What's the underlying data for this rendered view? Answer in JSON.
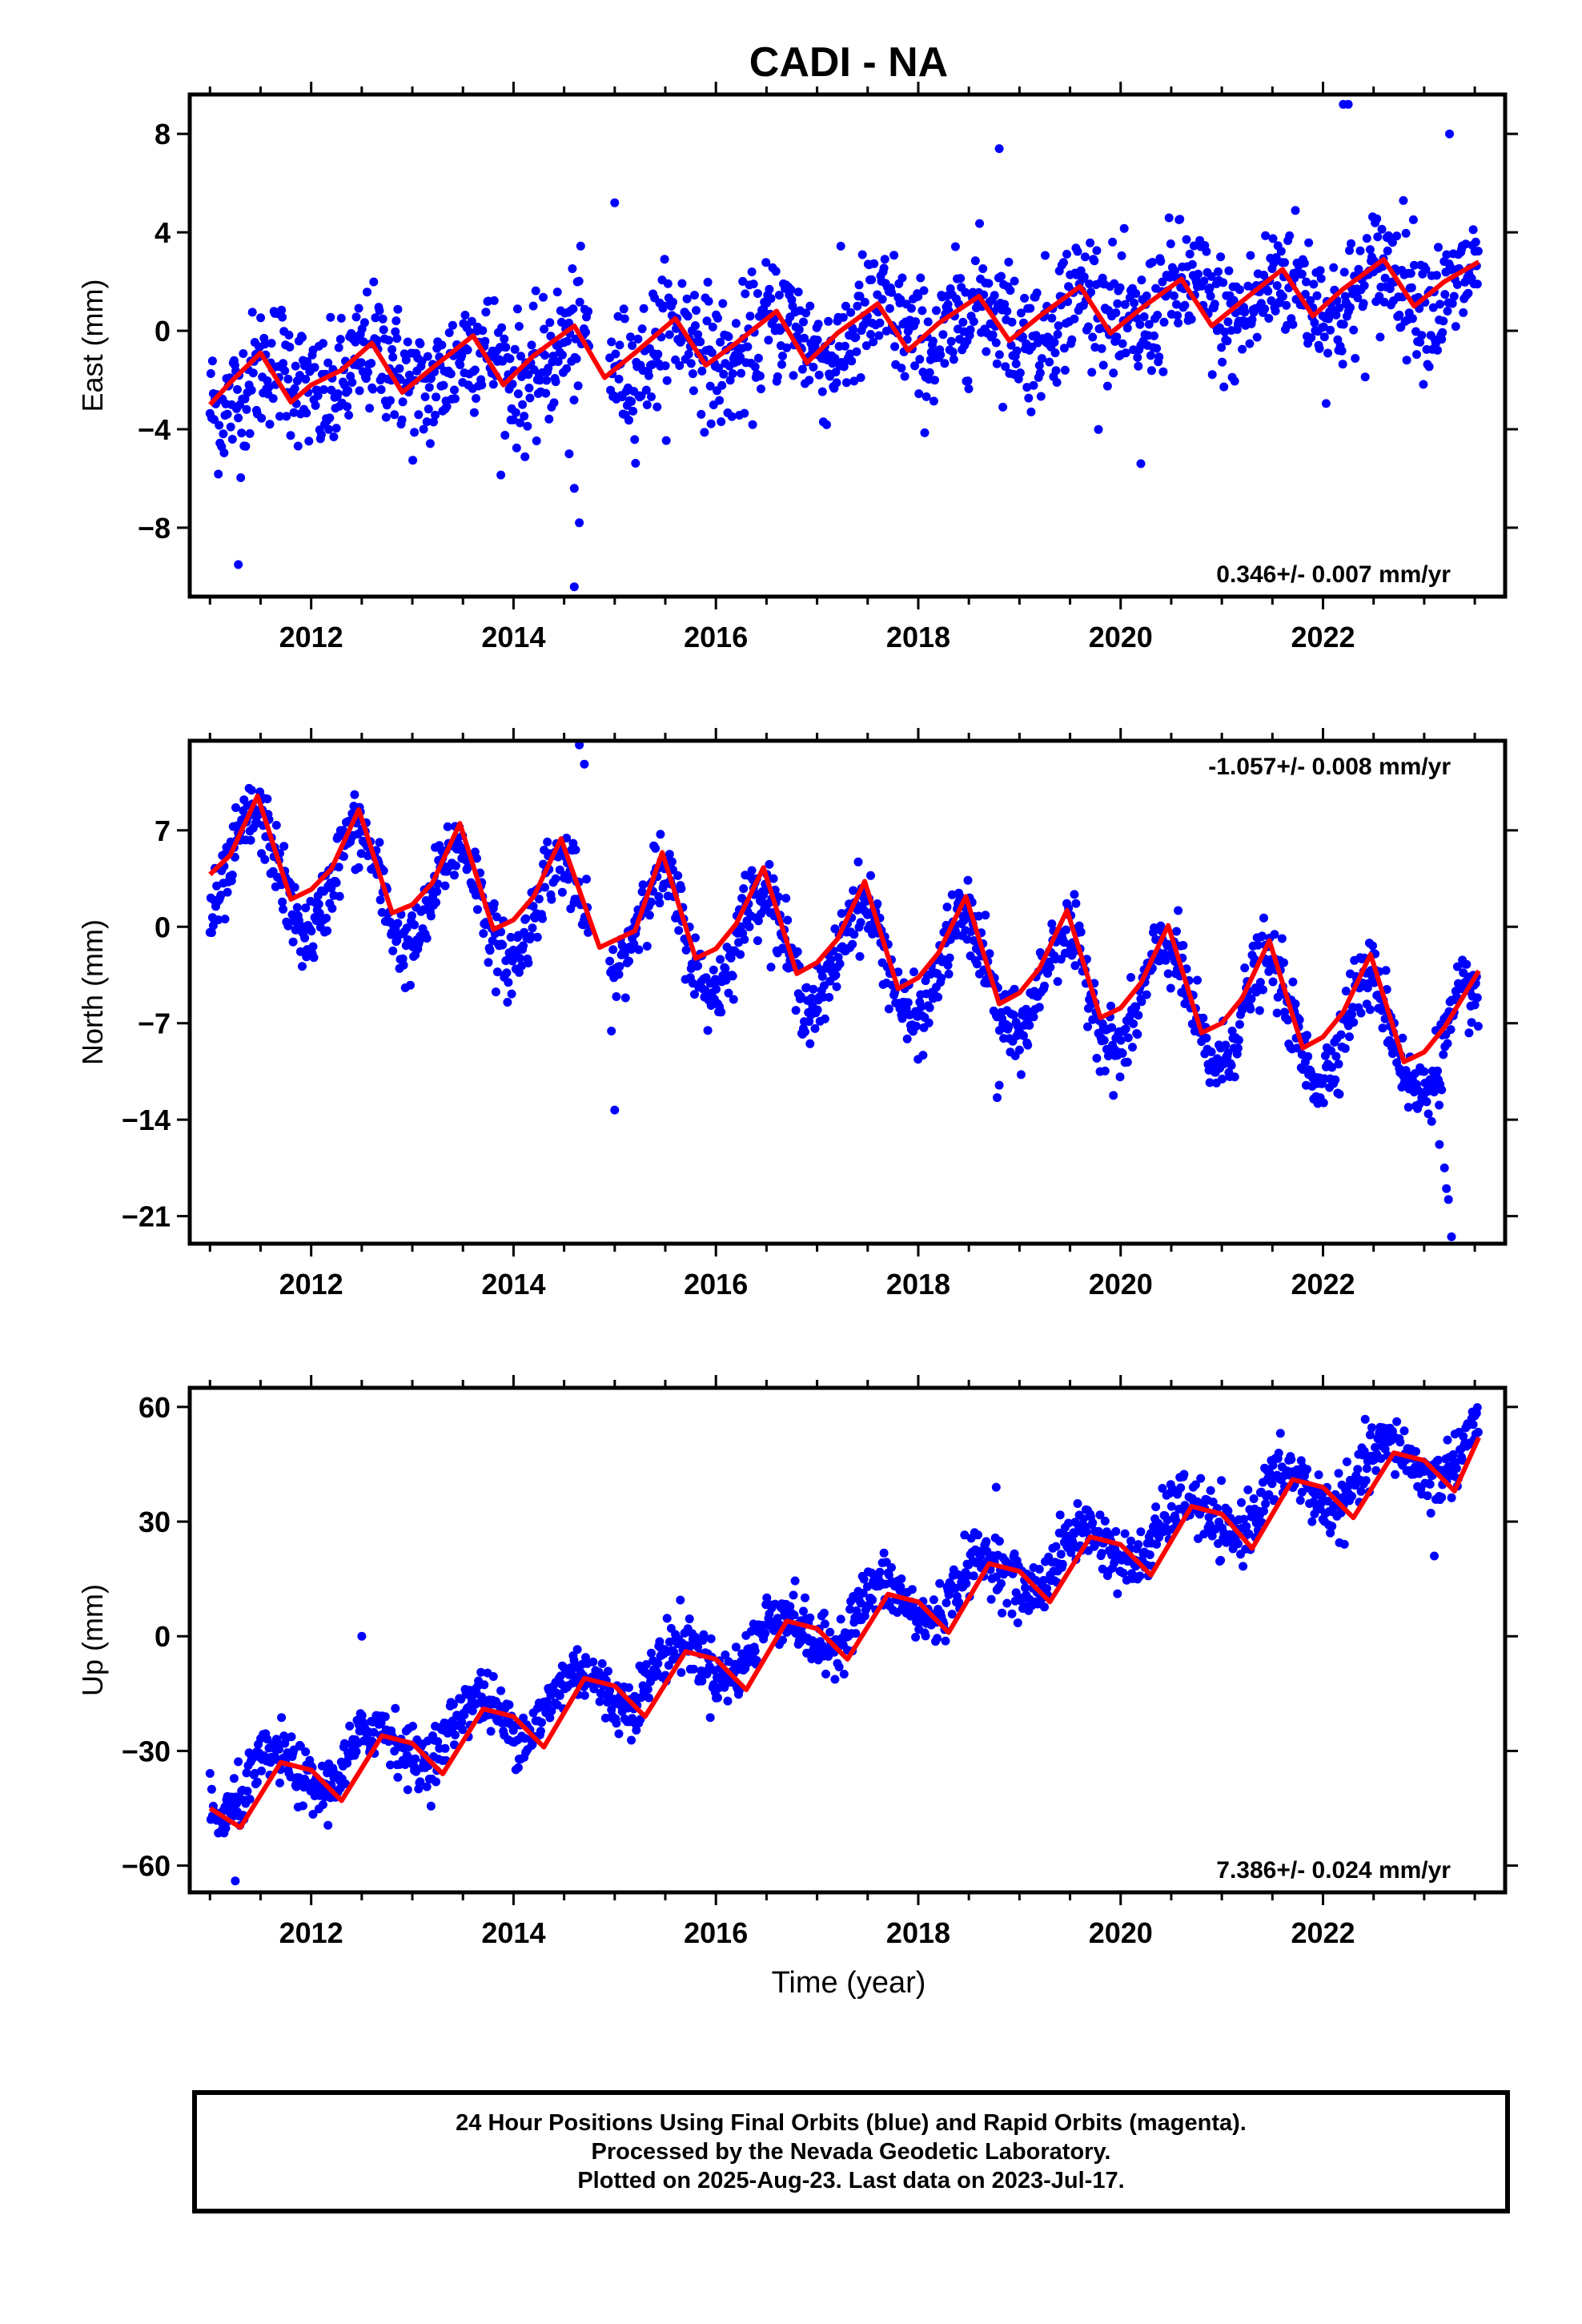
{
  "title": "CADI - NA",
  "colors": {
    "data": "#0000ff",
    "model": "#ff0000",
    "axis": "#000000"
  },
  "xaxis": {
    "label": "Time (year)",
    "ticks": [
      2012,
      2014,
      2016,
      2018,
      2020,
      2022
    ],
    "range": [
      2010.8,
      2023.8
    ]
  },
  "caption": {
    "line1": "24 Hour Positions Using Final Orbits (blue) and Rapid Orbits (magenta).",
    "line2": "Processed by the Nevada Geodetic Laboratory.",
    "line3": "Plotted on 2025-Aug-23. Last data on 2023-Jul-17."
  },
  "chart_data": [
    {
      "type": "scatter",
      "component": "East",
      "ylabel": "East (mm)",
      "ylim": [
        -10.8,
        9.6
      ],
      "yticks": [
        -8,
        -4,
        0,
        4,
        8
      ],
      "yticklabels": [
        "−8",
        "−4",
        "0",
        "4",
        "8"
      ],
      "rate": "0.346+/- 0.007 mm/yr",
      "rate_position": "bottom-right",
      "x_range": [
        2011.0,
        2023.54
      ],
      "trend": {
        "intercept": -2.3,
        "slope": 0.346,
        "amplitude": 0.9,
        "peak_phase": 0.62
      },
      "noise_sd": 1.3,
      "series": [
        {
          "name": "Final Orbits (blue)",
          "style": "points"
        },
        {
          "name": "",
          "style": "line",
          "x": [
            2011.0,
            2011.2,
            2011.5,
            2011.8,
            2012.0,
            2012.3,
            2012.6,
            2012.9,
            2013.2,
            2013.6,
            2013.9,
            2014.2,
            2014.6,
            2014.9,
            2015.2,
            2015.6,
            2015.9,
            2016.2,
            2016.6,
            2016.9,
            2017.2,
            2017.6,
            2017.9,
            2018.2,
            2018.6,
            2018.9,
            2019.2,
            2019.6,
            2019.9,
            2020.2,
            2020.6,
            2020.9,
            2021.2,
            2021.6,
            2021.9,
            2022.2,
            2022.6,
            2022.9,
            2023.2,
            2023.54
          ],
          "y": [
            -3.0,
            -2.1,
            -0.9,
            -2.9,
            -2.2,
            -1.6,
            -0.5,
            -2.5,
            -1.5,
            -0.2,
            -2.2,
            -1.0,
            0.2,
            -1.9,
            -0.9,
            0.5,
            -1.4,
            -0.5,
            0.8,
            -1.3,
            -0.1,
            1.1,
            -0.8,
            0.3,
            1.4,
            -0.4,
            0.6,
            1.8,
            -0.1,
            0.9,
            2.1,
            0.2,
            1.2,
            2.5,
            0.6,
            1.7,
            2.9,
            1.0,
            2.0,
            2.8
          ]
        }
      ],
      "outliers": [
        {
          "x": 2011.28,
          "y": -9.5
        },
        {
          "x": 2014.6,
          "y": -10.4
        },
        {
          "x": 2014.6,
          "y": -6.4
        },
        {
          "x": 2014.65,
          "y": -7.8
        },
        {
          "x": 2014.55,
          "y": -5.0
        },
        {
          "x": 2018.8,
          "y": 7.4
        },
        {
          "x": 2020.2,
          "y": -5.4
        },
        {
          "x": 2022.2,
          "y": 9.2
        },
        {
          "x": 2022.25,
          "y": 9.2
        },
        {
          "x": 2023.25,
          "y": 8.0
        },
        {
          "x": 2015.0,
          "y": 5.2
        }
      ]
    },
    {
      "type": "scatter",
      "component": "North",
      "ylabel": "North (mm)",
      "ylim": [
        -23.0,
        13.5
      ],
      "yticks": [
        -21,
        -14,
        -7,
        0,
        7
      ],
      "yticklabels": [
        "−21",
        "−14",
        "−7",
        "0",
        "7"
      ],
      "rate": "-1.057+/- 0.008 mm/yr",
      "rate_position": "top-right",
      "x_range": [
        2011.0,
        2023.54
      ],
      "trend": {
        "intercept": 4.5,
        "slope": -1.057,
        "amplitude": 4.0,
        "peak_phase": 0.45
      },
      "noise_sd": 1.3,
      "series": [
        {
          "name": "Final Orbits (blue)",
          "style": "points"
        },
        {
          "name": "",
          "style": "line",
          "x": [
            2011.0,
            2011.2,
            2011.47,
            2011.8,
            2012.0,
            2012.2,
            2012.47,
            2012.8,
            2013.0,
            2013.2,
            2013.47,
            2013.8,
            2014.0,
            2014.2,
            2014.47,
            2014.85,
            2015.2,
            2015.47,
            2015.8,
            2016.0,
            2016.2,
            2016.47,
            2016.8,
            2017.0,
            2017.2,
            2017.47,
            2017.8,
            2018.0,
            2018.2,
            2018.47,
            2018.8,
            2019.0,
            2019.2,
            2019.47,
            2019.8,
            2020.0,
            2020.2,
            2020.47,
            2020.8,
            2021.0,
            2021.2,
            2021.47,
            2021.8,
            2022.0,
            2022.2,
            2022.47,
            2022.8,
            2023.0,
            2023.2,
            2023.54
          ],
          "y": [
            3.8,
            5.2,
            9.5,
            2.0,
            2.7,
            4.2,
            8.5,
            1.0,
            1.6,
            3.2,
            7.5,
            -0.2,
            0.5,
            2.2,
            6.4,
            -1.5,
            -0.3,
            5.4,
            -2.3,
            -1.6,
            0.2,
            4.3,
            -3.4,
            -2.6,
            -0.9,
            3.3,
            -4.5,
            -3.7,
            -1.9,
            2.2,
            -5.6,
            -4.8,
            -3.0,
            1.2,
            -6.6,
            -5.9,
            -4.1,
            0.1,
            -7.7,
            -7.0,
            -5.2,
            -1.0,
            -8.8,
            -8.0,
            -6.2,
            -2.0,
            -9.8,
            -9.1,
            -7.3,
            -3.2
          ]
        }
      ],
      "outliers": [
        {
          "x": 2014.65,
          "y": 13.2
        },
        {
          "x": 2014.7,
          "y": 11.8
        },
        {
          "x": 2015.0,
          "y": -13.3
        },
        {
          "x": 2018.78,
          "y": -12.4
        },
        {
          "x": 2018.8,
          "y": -11.5
        },
        {
          "x": 2023.2,
          "y": -17.5
        },
        {
          "x": 2023.22,
          "y": -19.0
        },
        {
          "x": 2023.24,
          "y": -19.8
        },
        {
          "x": 2023.27,
          "y": -22.5
        },
        {
          "x": 2023.15,
          "y": -15.8
        }
      ]
    },
    {
      "type": "scatter",
      "component": "Up",
      "ylabel": "Up (mm)",
      "ylim": [
        -67,
        65
      ],
      "yticks": [
        -60,
        -30,
        0,
        30,
        60
      ],
      "yticklabels": [
        "−60",
        "−30",
        "0",
        "30",
        "60"
      ],
      "rate": "7.386+/- 0.024 mm/yr",
      "rate_position": "bottom-right",
      "x_range": [
        2011.0,
        2023.54
      ],
      "trend": {
        "intercept": -42.0,
        "slope": 7.386,
        "amplitude": 6.5,
        "peak_phase": 0.62
      },
      "noise_sd": 3.8,
      "series": [
        {
          "name": "Final Orbits (blue)",
          "style": "points"
        },
        {
          "name": "",
          "style": "line",
          "x": [
            2011.0,
            2011.3,
            2011.7,
            2012.0,
            2012.3,
            2012.7,
            2013.0,
            2013.3,
            2013.7,
            2014.0,
            2014.3,
            2014.7,
            2015.0,
            2015.3,
            2015.7,
            2016.0,
            2016.3,
            2016.7,
            2017.0,
            2017.3,
            2017.7,
            2018.0,
            2018.3,
            2018.7,
            2019.0,
            2019.3,
            2019.7,
            2020.0,
            2020.3,
            2020.7,
            2021.0,
            2021.3,
            2021.7,
            2022.0,
            2022.3,
            2022.7,
            2023.0,
            2023.3,
            2023.54
          ],
          "y": [
            -45,
            -50,
            -33,
            -35,
            -43,
            -26,
            -28,
            -36,
            -19,
            -21,
            -29,
            -11,
            -13,
            -21,
            -4,
            -6,
            -14,
            4,
            2,
            -6,
            11,
            9,
            1,
            19,
            17,
            9,
            26,
            24,
            16,
            34,
            32,
            23,
            41,
            39,
            31,
            48,
            46,
            38,
            52
          ]
        }
      ],
      "outliers": [
        {
          "x": 2012.5,
          "y": 0.0
        },
        {
          "x": 2018.77,
          "y": 39.0
        },
        {
          "x": 2023.1,
          "y": 21.0
        },
        {
          "x": 2011.25,
          "y": -64.0
        }
      ]
    }
  ]
}
